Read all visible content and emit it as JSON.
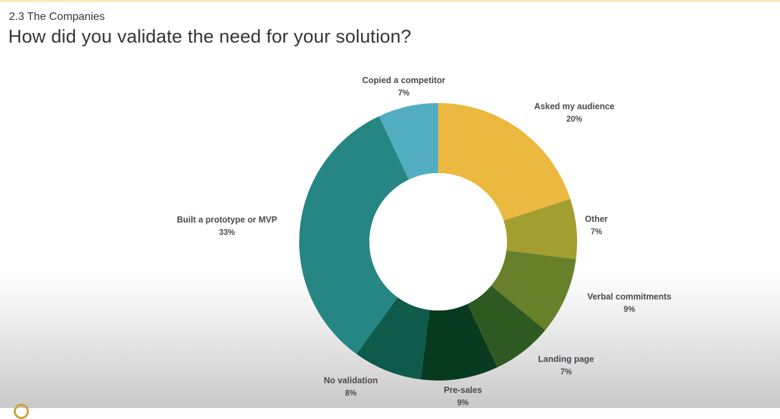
{
  "header": {
    "section": "2.3 The Companies",
    "title": "How did you validate the need for your solution?"
  },
  "chart_data": {
    "type": "pie",
    "subtype": "donut",
    "title": "How did you validate the need for your solution?",
    "start_angle_deg": 0,
    "direction": "clockwise",
    "categories": [
      "Asked my audience",
      "Other",
      "Verbal commitments",
      "Landing page",
      "Pre-sales",
      "No validation",
      "Built a prototype or MVP",
      "Copied a competitor"
    ],
    "values": [
      20,
      7,
      9,
      7,
      9,
      8,
      33,
      7
    ],
    "unit": "%",
    "colors": [
      "#ecb940",
      "#a49e31",
      "#67812b",
      "#2e5a22",
      "#073a1e",
      "#0e5a4b",
      "#268683",
      "#52adc1"
    ],
    "legend": "none (data labels outside slices)"
  },
  "labels": [
    {
      "name": "Asked my audience",
      "pct": "20%"
    },
    {
      "name": "Other",
      "pct": "7%"
    },
    {
      "name": "Verbal commitments",
      "pct": "9%"
    },
    {
      "name": "Landing page",
      "pct": "7%"
    },
    {
      "name": "Pre-sales",
      "pct": "9%"
    },
    {
      "name": "No validation",
      "pct": "8%"
    },
    {
      "name": "Built a prototype or MVP",
      "pct": "33%"
    },
    {
      "name": "Copied a competitor",
      "pct": "7%"
    }
  ]
}
